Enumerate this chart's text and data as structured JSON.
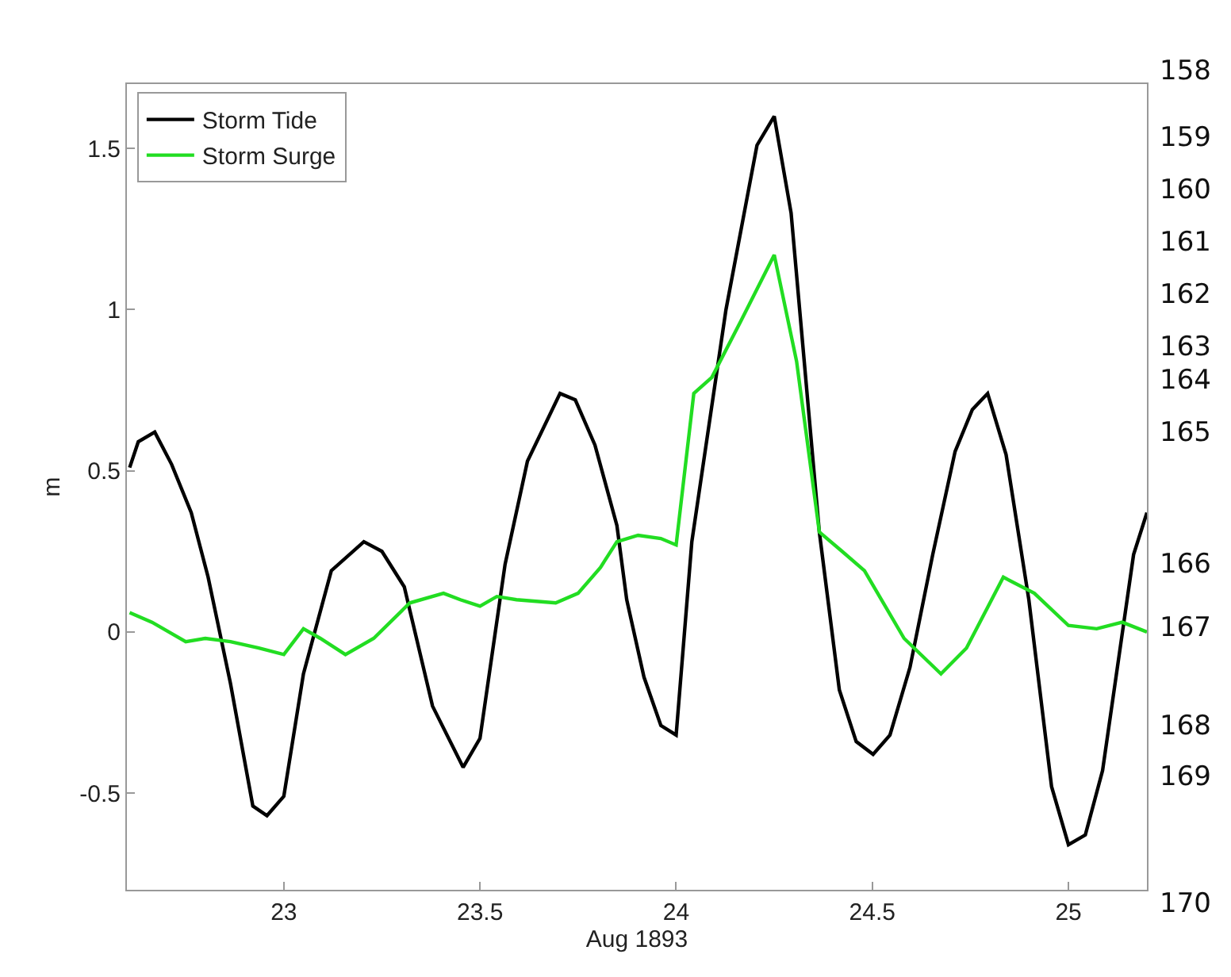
{
  "chart_data": {
    "type": "line",
    "xlabel": "Aug 1893",
    "ylabel": "m",
    "xlim": [
      22.6,
      25.2
    ],
    "xticks": [
      23,
      23.5,
      24,
      24.5,
      25
    ],
    "ylim": [
      -0.8,
      1.7
    ],
    "yticks": [
      -0.5,
      0,
      0.5,
      1,
      1.5
    ],
    "legend": "top left",
    "grid": false,
    "line_style": "solid",
    "marker": "none",
    "series": [
      {
        "name": "Storm Tide",
        "color": "#000000",
        "x": [
          22.607,
          22.629,
          22.671,
          22.714,
          22.764,
          22.807,
          22.864,
          22.921,
          22.957,
          23.0,
          23.05,
          23.121,
          23.204,
          23.25,
          23.307,
          23.379,
          23.457,
          23.5,
          23.564,
          23.621,
          23.704,
          23.743,
          23.793,
          23.849,
          23.874,
          23.918,
          23.961,
          24.0,
          24.04,
          24.127,
          24.206,
          24.25,
          24.293,
          24.365,
          24.416,
          24.459,
          24.502,
          24.545,
          24.596,
          24.654,
          24.711,
          24.755,
          24.794,
          24.841,
          24.899,
          24.957,
          25.0,
          25.043,
          25.087,
          25.166,
          25.2
        ],
        "values": [
          0.51,
          0.59,
          0.62,
          0.52,
          0.37,
          0.17,
          -0.16,
          -0.54,
          -0.57,
          -0.51,
          -0.13,
          0.19,
          0.28,
          0.25,
          0.14,
          -0.23,
          -0.42,
          -0.33,
          0.21,
          0.53,
          0.74,
          0.72,
          0.58,
          0.33,
          0.1,
          -0.14,
          -0.29,
          -0.32,
          0.28,
          1.0,
          1.51,
          1.6,
          1.3,
          0.31,
          -0.18,
          -0.34,
          -0.38,
          -0.32,
          -0.11,
          0.24,
          0.56,
          0.69,
          0.74,
          0.55,
          0.1,
          -0.48,
          -0.66,
          -0.63,
          -0.43,
          0.24,
          0.37
        ]
      },
      {
        "name": "Storm Surge",
        "color": "#22dd22",
        "x": [
          22.607,
          22.664,
          22.75,
          22.8,
          22.864,
          22.936,
          23.0,
          23.05,
          23.093,
          23.157,
          23.229,
          23.321,
          23.407,
          23.45,
          23.5,
          23.543,
          23.593,
          23.693,
          23.75,
          23.807,
          23.849,
          23.903,
          23.961,
          24.0,
          24.045,
          24.091,
          24.163,
          24.25,
          24.307,
          24.365,
          24.423,
          24.48,
          24.581,
          24.675,
          24.74,
          24.834,
          24.913,
          25.0,
          25.072,
          25.137,
          25.2
        ],
        "values": [
          0.06,
          0.03,
          -0.03,
          -0.02,
          -0.03,
          -0.05,
          -0.07,
          0.01,
          -0.02,
          -0.07,
          -0.02,
          0.09,
          0.12,
          0.1,
          0.08,
          0.11,
          0.1,
          0.09,
          0.12,
          0.2,
          0.28,
          0.3,
          0.29,
          0.27,
          0.74,
          0.79,
          0.96,
          1.17,
          0.84,
          0.31,
          0.25,
          0.19,
          -0.02,
          -0.13,
          -0.05,
          0.17,
          0.12,
          0.02,
          0.01,
          0.03,
          0.0
        ]
      }
    ],
    "annotations": [
      "158",
      "159",
      "160",
      "161",
      "162",
      "163",
      "164",
      "165",
      "166",
      "167",
      "168",
      "169",
      "170"
    ]
  }
}
